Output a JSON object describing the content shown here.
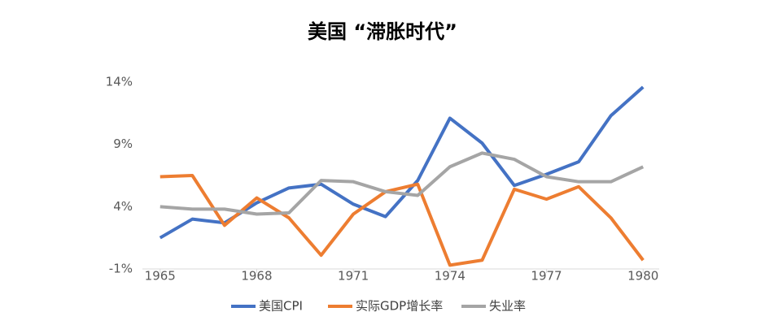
{
  "chart_data": {
    "type": "line",
    "title": "美国 “滞胀时代”",
    "x": [
      1965,
      1966,
      1967,
      1968,
      1969,
      1970,
      1971,
      1972,
      1973,
      1974,
      1975,
      1976,
      1977,
      1978,
      1979,
      1980
    ],
    "xlim": [
      1964.45,
      1980.5
    ],
    "xticks": [
      1965,
      1968,
      1971,
      1974,
      1977,
      1980
    ],
    "ylim": [
      -1,
      14
    ],
    "yticks": [
      {
        "value": -1,
        "label": "-1%"
      },
      {
        "value": 4,
        "label": "4%"
      },
      {
        "value": 9,
        "label": "9%"
      },
      {
        "value": 14,
        "label": "14%"
      }
    ],
    "series": [
      {
        "name": "美国CPI",
        "color": "#4472c4",
        "values": [
          1.5,
          3.0,
          2.7,
          4.3,
          5.5,
          5.8,
          4.2,
          3.2,
          6.1,
          11.1,
          9.1,
          5.7,
          6.6,
          7.6,
          11.3,
          13.6
        ]
      },
      {
        "name": "实际GDP增长率",
        "color": "#ed7d31",
        "values": [
          6.4,
          6.5,
          2.5,
          4.7,
          3.1,
          0.1,
          3.4,
          5.2,
          5.8,
          -0.7,
          -0.3,
          5.4,
          4.6,
          5.6,
          3.1,
          -0.3
        ]
      },
      {
        "name": "失业率",
        "color": "#a5a5a5",
        "values": [
          4.0,
          3.8,
          3.8,
          3.4,
          3.5,
          6.1,
          6.0,
          5.2,
          4.9,
          7.2,
          8.3,
          7.8,
          6.4,
          6.0,
          6.0,
          7.2
        ]
      }
    ]
  }
}
